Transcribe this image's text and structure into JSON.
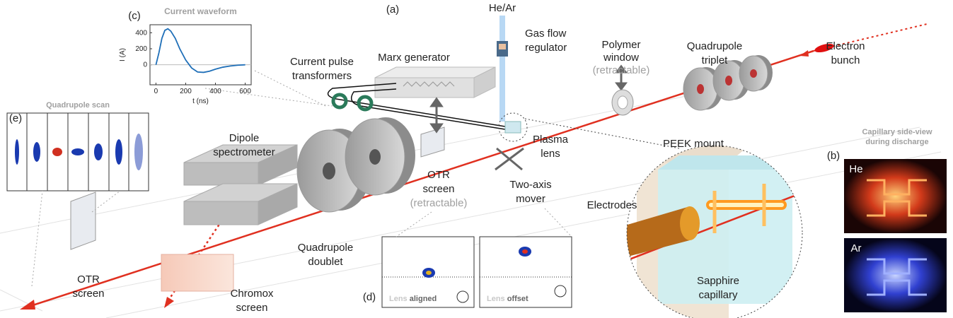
{
  "panel_labels": [
    "(a)",
    "(b)",
    "(c)",
    "(d)",
    "(e)"
  ],
  "labels": {
    "gas": "He/Ar",
    "regulator": [
      "Gas flow",
      "regulator"
    ],
    "polymer": [
      "Polymer",
      "window"
    ],
    "polymer_note": "(retractable)",
    "triplet": [
      "Quadrupole",
      "triplet"
    ],
    "bunch": [
      "Electron",
      "bunch"
    ],
    "transformers": [
      "Current pulse",
      "transformers"
    ],
    "marx": "Marx generator",
    "dipole": [
      "Dipole",
      "spectrometer"
    ],
    "plasma_lens": [
      "Plasma",
      "lens"
    ],
    "peek": "PEEK mount",
    "otr_mid": [
      "OTR",
      "screen"
    ],
    "otr_mid_note": "(retractable)",
    "mover": [
      "Two-axis",
      "mover"
    ],
    "electrodes": "Electrodes",
    "doublet": [
      "Quadrupole",
      "doublet"
    ],
    "otr_end": [
      "OTR",
      "screen"
    ],
    "chromox": [
      "Chromox",
      "screen"
    ],
    "sapphire": [
      "Sapphire",
      "capillary"
    ]
  },
  "inset_b": {
    "title": [
      "Capillary side-view",
      "during discharge"
    ],
    "gases": [
      "He",
      "Ar"
    ]
  },
  "inset_d": [
    {
      "prefix": "Lens",
      "state": "aligned"
    },
    {
      "prefix": "Lens",
      "state": "offset"
    }
  ],
  "inset_e": {
    "title": "Quadrupole scan"
  },
  "chart_data": {
    "type": "line",
    "title": "Current waveform",
    "xlabel": "t (ns)",
    "ylabel": "I (A)",
    "x": [
      0,
      20,
      40,
      60,
      80,
      100,
      130,
      160,
      200,
      240,
      280,
      320,
      360,
      400,
      450,
      500,
      550,
      600
    ],
    "y": [
      0,
      150,
      330,
      430,
      450,
      420,
      330,
      200,
      60,
      -40,
      -90,
      -95,
      -80,
      -55,
      -30,
      -15,
      -5,
      0
    ],
    "xlim": [
      -40,
      640
    ],
    "ylim": [
      -250,
      500
    ],
    "xticks": [
      0,
      200,
      400,
      600
    ],
    "yticks": [
      0,
      200,
      400
    ],
    "color": "#1f6fb8"
  }
}
